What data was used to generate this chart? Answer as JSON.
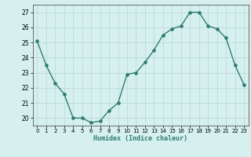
{
  "x": [
    0,
    1,
    2,
    3,
    4,
    5,
    6,
    7,
    8,
    9,
    10,
    11,
    12,
    13,
    14,
    15,
    16,
    17,
    18,
    19,
    20,
    21,
    22,
    23
  ],
  "y": [
    25.1,
    23.5,
    22.3,
    21.6,
    20.0,
    20.0,
    19.7,
    19.8,
    20.5,
    21.0,
    22.9,
    23.0,
    23.7,
    24.5,
    25.5,
    25.9,
    26.1,
    27.0,
    27.0,
    26.1,
    25.9,
    25.3,
    23.5,
    22.2
  ],
  "xlabel": "Humidex (Indice chaleur)",
  "ylim": [
    19.5,
    27.5
  ],
  "yticks": [
    20,
    21,
    22,
    23,
    24,
    25,
    26,
    27
  ],
  "xticks": [
    0,
    1,
    2,
    3,
    4,
    5,
    6,
    7,
    8,
    9,
    10,
    11,
    12,
    13,
    14,
    15,
    16,
    17,
    18,
    19,
    20,
    21,
    22,
    23
  ],
  "line_color": "#2e7d6e",
  "marker": "D",
  "markersize": 2.0,
  "bg_color": "#d6f0f0",
  "grid_color": "#b8d4d4",
  "linewidth": 1.0
}
